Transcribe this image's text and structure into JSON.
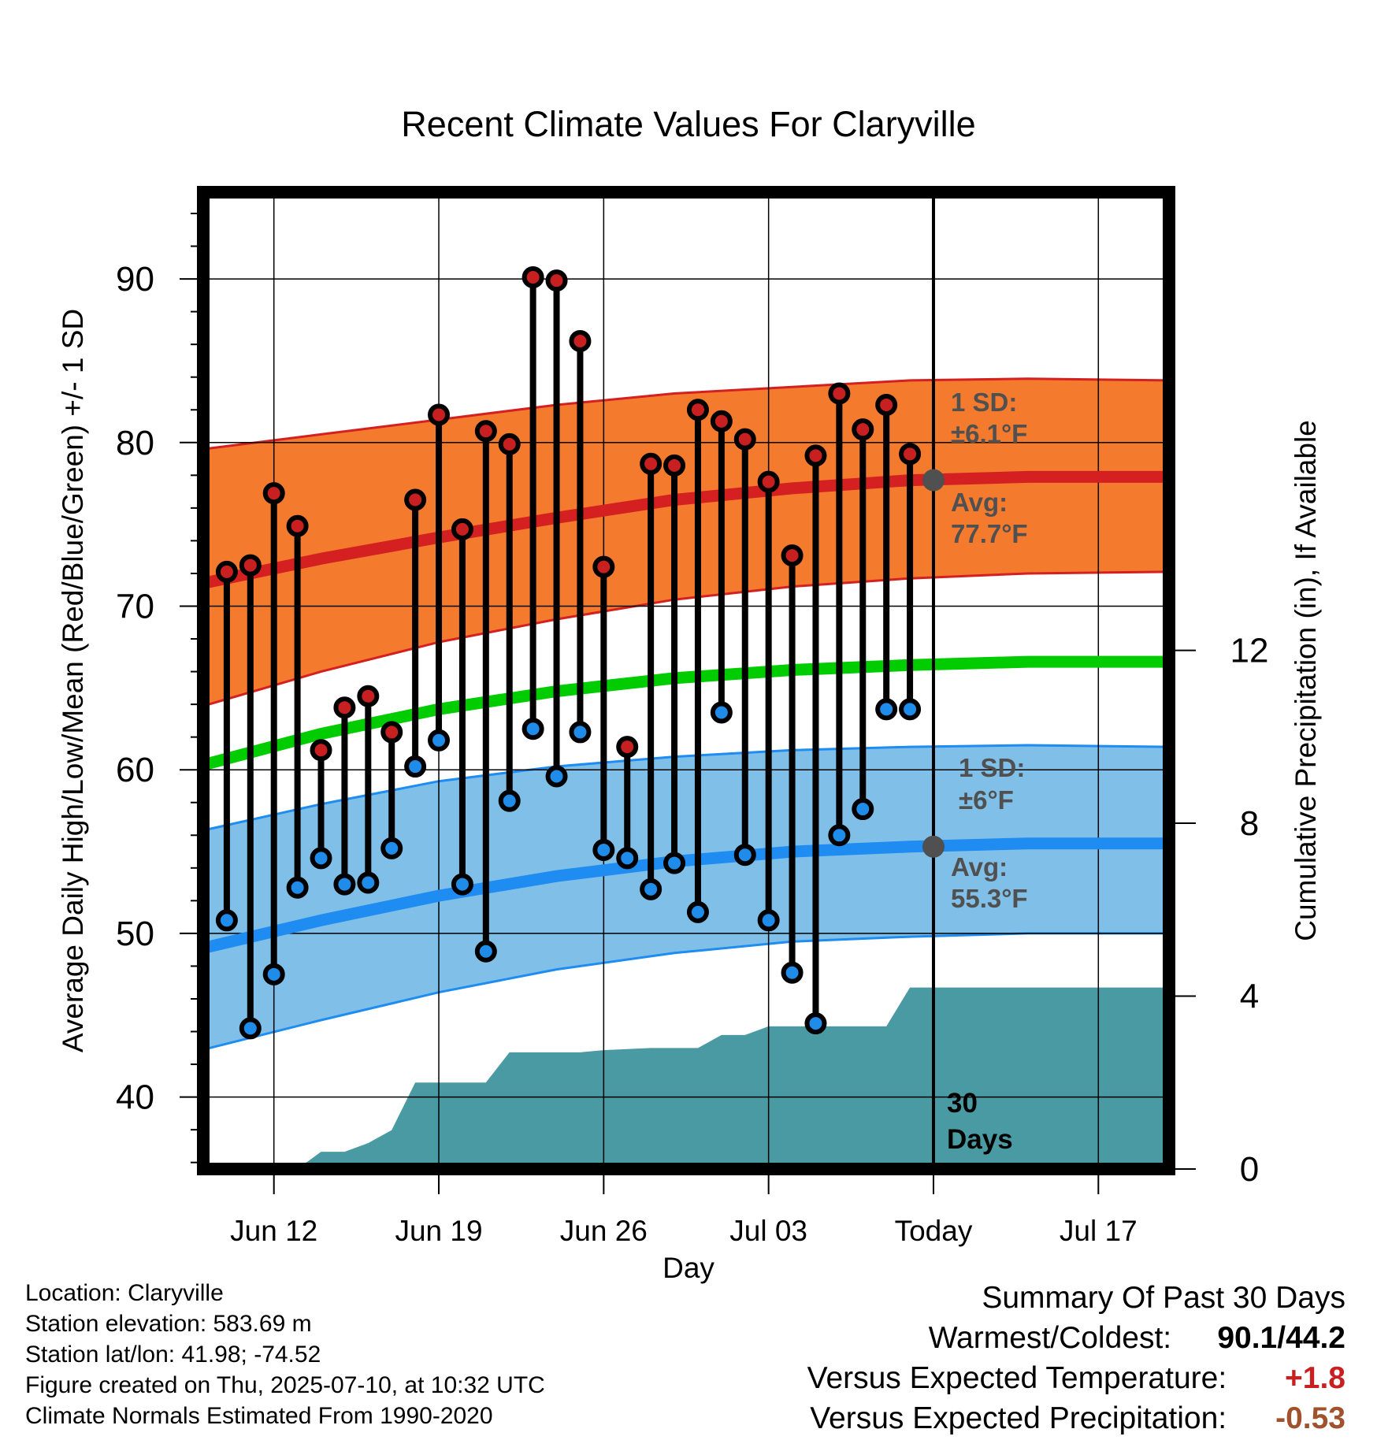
{
  "chart_data": {
    "type": "line",
    "title": "Recent Climate Values For Claryville",
    "xlabel": "Day",
    "ylabel": "Average Daily High/Low/Mean (Red/Blue/Green) +/- 1 SD",
    "y2label": "Cumulative Precipitation (in), If Available",
    "x_ticks": [
      "Jun 12",
      "Jun 19",
      "Jun 26",
      "Jul 03",
      "Today",
      "Jul 17"
    ],
    "y_ticks": [
      "40",
      "50",
      "60",
      "70",
      "80",
      "90"
    ],
    "y2_ticks": [
      "0",
      "4",
      "8",
      "12"
    ],
    "ylim": [
      35.6,
      95.3
    ],
    "y2lim": [
      0,
      22.6
    ],
    "xlim": [
      "2025-06-09",
      "2025-07-20"
    ],
    "grid": true,
    "today": "2025-07-10",
    "dates": [
      "2025-06-10",
      "2025-06-11",
      "2025-06-12",
      "2025-06-13",
      "2025-06-14",
      "2025-06-15",
      "2025-06-16",
      "2025-06-17",
      "2025-06-18",
      "2025-06-19",
      "2025-06-20",
      "2025-06-21",
      "2025-06-22",
      "2025-06-23",
      "2025-06-24",
      "2025-06-25",
      "2025-06-26",
      "2025-06-27",
      "2025-06-28",
      "2025-06-29",
      "2025-06-30",
      "2025-07-01",
      "2025-07-02",
      "2025-07-03",
      "2025-07-04",
      "2025-07-05",
      "2025-07-06",
      "2025-07-07",
      "2025-07-08",
      "2025-07-09"
    ],
    "daily_high": [
      72.1,
      72.5,
      76.9,
      74.9,
      61.2,
      63.8,
      64.5,
      62.3,
      76.5,
      81.7,
      74.7,
      80.7,
      79.9,
      90.1,
      89.9,
      86.2,
      72.4,
      61.4,
      78.7,
      78.6,
      82.0,
      81.3,
      80.2,
      77.6,
      73.1,
      79.2,
      83.0,
      80.8,
      82.3,
      79.3
    ],
    "daily_low": [
      50.8,
      44.2,
      47.5,
      52.8,
      54.6,
      53.0,
      53.1,
      55.2,
      60.2,
      61.8,
      53.0,
      48.9,
      58.1,
      62.5,
      59.6,
      62.3,
      55.1,
      54.6,
      52.7,
      54.3,
      51.3,
      63.5,
      54.8,
      50.8,
      47.6,
      44.5,
      56.0,
      57.6,
      63.7,
      63.7
    ],
    "normals": {
      "dates": [
        "2025-06-09",
        "2025-06-14",
        "2025-06-19",
        "2025-06-24",
        "2025-06-29",
        "2025-07-04",
        "2025-07-09",
        "2025-07-14",
        "2025-07-20"
      ],
      "avg_high": [
        71.4,
        72.9,
        74.2,
        75.4,
        76.5,
        77.2,
        77.7,
        77.9,
        77.9
      ],
      "high_sd_upper": [
        79.6,
        80.5,
        81.4,
        82.3,
        83.0,
        83.4,
        83.8,
        83.9,
        83.8
      ],
      "high_sd_lower": [
        63.9,
        66.0,
        67.8,
        69.2,
        70.4,
        71.2,
        71.7,
        72.0,
        72.1
      ],
      "avg_low": [
        49.1,
        50.8,
        52.3,
        53.5,
        54.4,
        55.0,
        55.3,
        55.5,
        55.5
      ],
      "low_sd_upper": [
        56.3,
        57.9,
        59.3,
        60.2,
        60.8,
        61.2,
        61.4,
        61.5,
        61.4
      ],
      "low_sd_lower": [
        42.9,
        44.7,
        46.4,
        47.8,
        48.8,
        49.5,
        49.8,
        50.0,
        50.0
      ],
      "mean": [
        60.3,
        62.2,
        63.7,
        64.8,
        65.6,
        66.1,
        66.4,
        66.6,
        66.6
      ]
    },
    "cumulative_precip": {
      "dates": [
        "2025-06-10",
        "2025-06-13",
        "2025-06-14",
        "2025-06-15",
        "2025-06-16",
        "2025-06-17",
        "2025-06-18",
        "2025-06-21",
        "2025-06-22",
        "2025-06-25",
        "2025-06-26",
        "2025-06-28",
        "2025-06-30",
        "2025-07-01",
        "2025-07-02",
        "2025-07-03",
        "2025-07-07",
        "2025-07-08",
        "2025-07-09",
        "2025-07-20"
      ],
      "values": [
        0.0,
        0.0,
        0.4,
        0.4,
        0.6,
        0.9,
        2.0,
        2.0,
        2.7,
        2.7,
        2.75,
        2.8,
        2.8,
        3.1,
        3.1,
        3.3,
        3.3,
        3.3,
        4.2,
        4.2
      ]
    },
    "high_band_label": "1 SD:",
    "high_sd_value": "±6.1°F",
    "high_avg_label": "Avg:",
    "high_avg_value": "77.7°F",
    "low_band_label": "1 SD:",
    "low_sd_value": "±6°F",
    "low_avg_label": "Avg:",
    "low_avg_value": "55.3°F",
    "period_label_num": "30",
    "period_label_unit": "Days",
    "colors": {
      "high_band": "#f47a2e",
      "high_line": "#d42020",
      "low_band": "#80c0e8",
      "low_line": "#1e8cf0",
      "mean_line": "#00cc00",
      "precip": "#4a9aa4",
      "high_dot": "#c82020",
      "low_dot": "#1e8ce8",
      "annotation": "#505050"
    }
  },
  "info": {
    "location": "Location: Claryville",
    "elevation": "Station elevation: 583.69 m",
    "latlon": "Station lat/lon: 41.98; -74.52",
    "created": "Figure created on Thu, 2025-07-10, at 10:32 UTC",
    "normals": "Climate Normals Estimated From 1990-2020"
  },
  "summary": {
    "title": "Summary Of Past 30 Days",
    "warmest_label": "Warmest/Coldest:",
    "warmest_value": "90.1/44.2",
    "temp_label": "Versus Expected Temperature:",
    "temp_value": "+1.8",
    "temp_color": "#c82020",
    "precip_label": "Versus Expected Precipitation:",
    "precip_value": "-0.53",
    "precip_color": "#a0522d"
  }
}
